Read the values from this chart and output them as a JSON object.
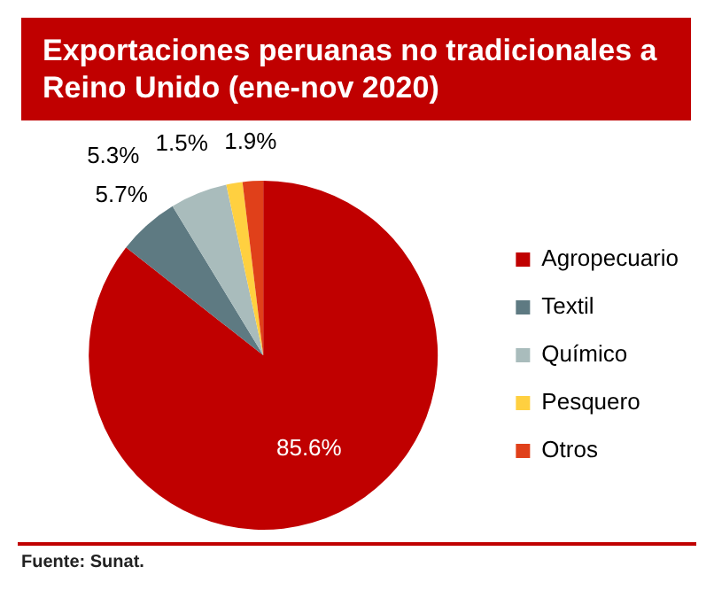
{
  "chart_data": {
    "type": "pie",
    "title": "Exportaciones peruanas no tradicionales a Reino Unido (ene-nov 2020)",
    "categories": [
      "Agropecuario",
      "Textil",
      "Químico",
      "Pesquero",
      "Otros"
    ],
    "values": [
      85.6,
      5.7,
      5.3,
      1.5,
      1.9
    ],
    "value_labels": [
      "85.6%",
      "5.7%",
      "5.3%",
      "1.5%",
      "1.9%"
    ],
    "colors": [
      "#c00000",
      "#5e7a82",
      "#a9bcbc",
      "#ffd040",
      "#e0401a"
    ],
    "legend": "right",
    "annotations": [
      "Fuente: Sunat."
    ]
  }
}
